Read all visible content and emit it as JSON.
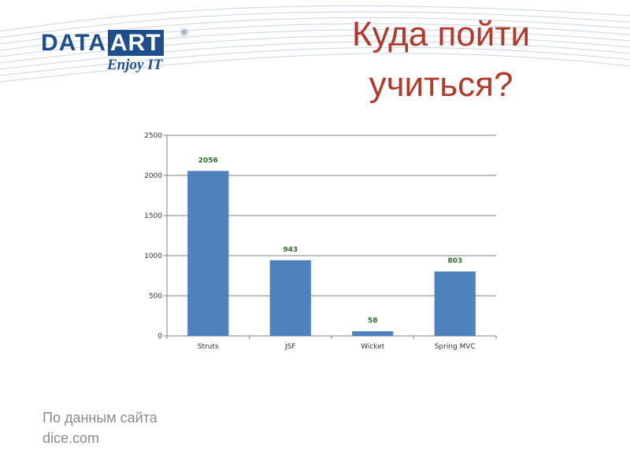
{
  "logo": {
    "brand_left": "DATA",
    "brand_right": "ART",
    "registered": "®",
    "tagline": "Enjoy IT"
  },
  "title": {
    "line1": "Куда пойти",
    "line2": "учиться?"
  },
  "source": {
    "line1": "По данным сайта",
    "line2": "dice.com"
  },
  "colors": {
    "bar": "#4f81bd",
    "title": "#b23a2a",
    "data_label": "#2e6e2e",
    "source_text": "#8a8a8a"
  },
  "chart_data": {
    "type": "bar",
    "categories": [
      "Struts",
      "JSF",
      "Wicket",
      "Spring MVC"
    ],
    "values": [
      2056,
      943,
      58,
      803
    ],
    "data_labels": [
      "2056",
      "943",
      "58",
      "803"
    ],
    "yticks": [
      0,
      500,
      1000,
      1500,
      2000,
      2500
    ],
    "ylim": [
      0,
      2500
    ],
    "grid": true,
    "legend": "none"
  }
}
